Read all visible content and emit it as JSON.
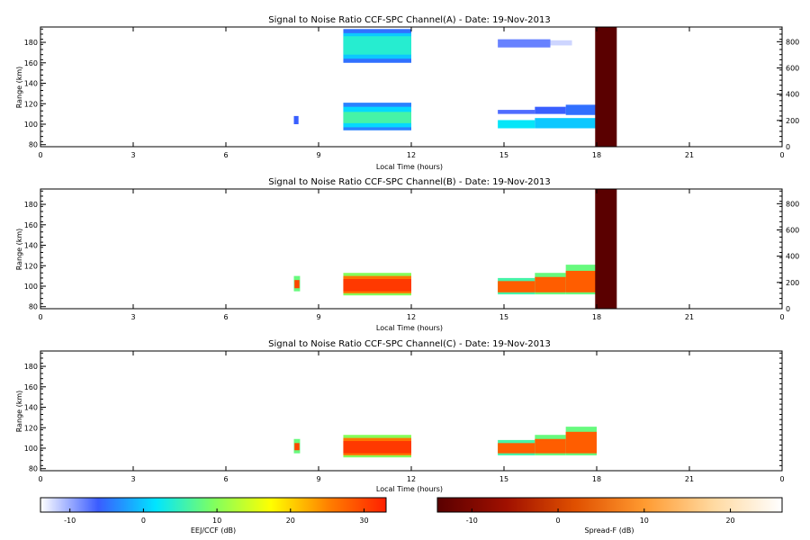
{
  "chart_data": [
    {
      "type": "heatmap",
      "title": "Signal to Noise Ratio CCF-SPC Channel(A) - Date: 19-Nov-2013",
      "xlabel": "Local Time (hours)",
      "ylabel": "Range (km)",
      "xlim": [
        0,
        24
      ],
      "ylim": [
        78,
        195
      ],
      "x_ticks": [
        "0",
        "3",
        "6",
        "9",
        "12",
        "15",
        "18",
        "21",
        "0"
      ],
      "y_ticks": [
        80,
        100,
        120,
        140,
        160,
        180
      ],
      "y2_ticks": [
        0,
        200,
        400,
        600,
        800
      ],
      "y2_lim": [
        0,
        912
      ],
      "blocks": [
        {
          "x0": 8.2,
          "x1": 8.35,
          "y0": 100,
          "y1": 108,
          "db": -6
        },
        {
          "x0": 9.8,
          "x1": 12.0,
          "y0": 160,
          "y1": 193,
          "db": -5
        },
        {
          "x0": 9.8,
          "x1": 12.0,
          "y0": 164,
          "y1": 189,
          "db": 0
        },
        {
          "x0": 9.8,
          "x1": 12.0,
          "y0": 168,
          "y1": 186,
          "db": 4
        },
        {
          "x0": 9.8,
          "x1": 12.0,
          "y0": 94,
          "y1": 121,
          "db": -4
        },
        {
          "x0": 9.8,
          "x1": 12.0,
          "y0": 97,
          "y1": 117,
          "db": 1
        },
        {
          "x0": 9.8,
          "x1": 12.0,
          "y0": 101,
          "y1": 112,
          "db": 6
        },
        {
          "x0": 14.8,
          "x1": 16.5,
          "y0": 175,
          "y1": 183,
          "db": -8
        },
        {
          "x0": 16.5,
          "x1": 17.2,
          "y0": 177,
          "y1": 182,
          "db": -12
        },
        {
          "x0": 14.8,
          "x1": 16.0,
          "y0": 96,
          "y1": 104,
          "db": 2
        },
        {
          "x0": 16.0,
          "x1": 18.0,
          "y0": 96,
          "y1": 106,
          "db": 0
        },
        {
          "x0": 14.8,
          "x1": 16.0,
          "y0": 110,
          "y1": 114,
          "db": -7
        },
        {
          "x0": 16.0,
          "x1": 17.0,
          "y0": 110,
          "y1": 117,
          "db": -6
        },
        {
          "x0": 17.0,
          "x1": 18.0,
          "y0": 109,
          "y1": 119,
          "db": -5
        }
      ],
      "spread_f": [
        {
          "x0": 17.95,
          "x1": 18.65,
          "y0": 78,
          "y1": 195,
          "db": -14
        }
      ]
    },
    {
      "type": "heatmap",
      "title": "Signal to Noise Ratio CCF-SPC Channel(B) - Date: 19-Nov-2013",
      "xlabel": "Local Time (hours)",
      "ylabel": "Range (km)",
      "xlim": [
        0,
        24
      ],
      "ylim": [
        78,
        195
      ],
      "x_ticks": [
        "0",
        "3",
        "6",
        "9",
        "12",
        "15",
        "18",
        "21",
        "0"
      ],
      "y_ticks": [
        80,
        100,
        120,
        140,
        160,
        180
      ],
      "y2_ticks": [
        0,
        200,
        400,
        600,
        800
      ],
      "y2_lim": [
        0,
        912
      ],
      "blocks": [
        {
          "x0": 8.2,
          "x1": 8.4,
          "y0": 95,
          "y1": 110,
          "db": 8
        },
        {
          "x0": 8.22,
          "x1": 8.38,
          "y0": 98,
          "y1": 106,
          "db": 30
        },
        {
          "x0": 9.8,
          "x1": 12.0,
          "y0": 91,
          "y1": 113,
          "db": 10
        },
        {
          "x0": 9.8,
          "x1": 12.0,
          "y0": 93,
          "y1": 110,
          "db": 26
        },
        {
          "x0": 9.8,
          "x1": 12.0,
          "y0": 95,
          "y1": 107,
          "db": 31
        },
        {
          "x0": 14.8,
          "x1": 16.0,
          "y0": 92,
          "y1": 108,
          "db": 6
        },
        {
          "x0": 14.8,
          "x1": 16.0,
          "y0": 94,
          "y1": 105,
          "db": 28
        },
        {
          "x0": 16.0,
          "x1": 17.0,
          "y0": 92,
          "y1": 113,
          "db": 8
        },
        {
          "x0": 16.0,
          "x1": 17.0,
          "y0": 94,
          "y1": 109,
          "db": 28
        },
        {
          "x0": 17.0,
          "x1": 18.0,
          "y0": 92,
          "y1": 121,
          "db": 8
        },
        {
          "x0": 17.0,
          "x1": 18.0,
          "y0": 94,
          "y1": 115,
          "db": 28
        }
      ],
      "spread_f": [
        {
          "x0": 17.95,
          "x1": 18.65,
          "y0": 78,
          "y1": 195,
          "db": -14
        }
      ]
    },
    {
      "type": "heatmap",
      "title": "Signal to Noise Ratio CCF-SPC Channel(C) - Date: 19-Nov-2013",
      "xlabel": "Local Time (hours)",
      "ylabel": "Range (km)",
      "xlim": [
        0,
        24
      ],
      "ylim": [
        78,
        195
      ],
      "x_ticks": [
        "0",
        "3",
        "6",
        "9",
        "12",
        "15",
        "18",
        "21",
        "0"
      ],
      "y_ticks": [
        80,
        100,
        120,
        140,
        160,
        180
      ],
      "blocks": [
        {
          "x0": 8.2,
          "x1": 8.4,
          "y0": 95,
          "y1": 109,
          "db": 8
        },
        {
          "x0": 8.22,
          "x1": 8.38,
          "y0": 98,
          "y1": 105,
          "db": 30
        },
        {
          "x0": 9.8,
          "x1": 12.0,
          "y0": 91,
          "y1": 113,
          "db": 10
        },
        {
          "x0": 9.8,
          "x1": 12.0,
          "y0": 93,
          "y1": 110,
          "db": 26
        },
        {
          "x0": 9.8,
          "x1": 12.0,
          "y0": 95,
          "y1": 107,
          "db": 31
        },
        {
          "x0": 14.8,
          "x1": 16.0,
          "y0": 93,
          "y1": 108,
          "db": 6
        },
        {
          "x0": 14.8,
          "x1": 16.0,
          "y0": 95,
          "y1": 105,
          "db": 28
        },
        {
          "x0": 16.0,
          "x1": 17.0,
          "y0": 93,
          "y1": 113,
          "db": 8
        },
        {
          "x0": 16.0,
          "x1": 17.0,
          "y0": 95,
          "y1": 109,
          "db": 28
        },
        {
          "x0": 17.0,
          "x1": 18.0,
          "y0": 93,
          "y1": 121,
          "db": 8
        },
        {
          "x0": 17.0,
          "x1": 18.0,
          "y0": 95,
          "y1": 116,
          "db": 28
        }
      ],
      "spread_f": []
    }
  ],
  "colorbars": [
    {
      "label": "EEJ/CCF (dB)",
      "range": [
        -14,
        33
      ],
      "ticks": [
        -10,
        0,
        10,
        20,
        30
      ],
      "stops": [
        "#ffffff",
        "#3a5cff",
        "#00e5ff",
        "#7fff60",
        "#ffff00",
        "#ff8000",
        "#ff2000"
      ]
    },
    {
      "label": "Spread-F (dB)",
      "range": [
        -14,
        26
      ],
      "ticks": [
        -10,
        0,
        10,
        20
      ],
      "stops": [
        "#5a0000",
        "#a01000",
        "#e05000",
        "#ff9a30",
        "#ffd9a0",
        "#ffffff"
      ]
    }
  ]
}
